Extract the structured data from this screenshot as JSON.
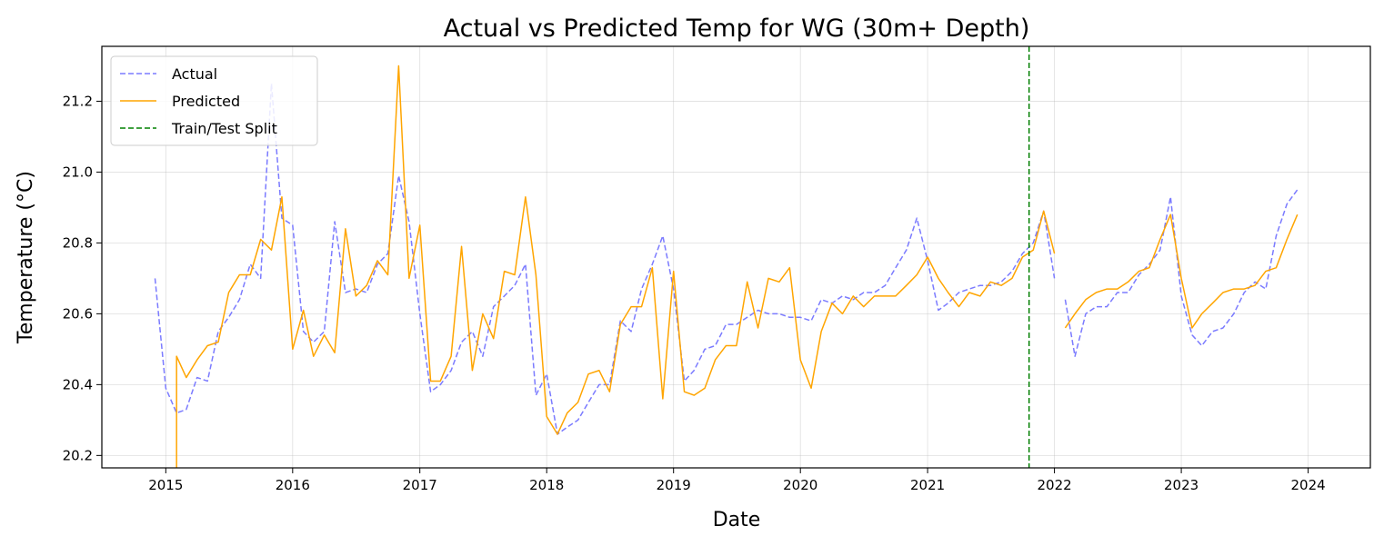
{
  "chart_data": {
    "type": "line",
    "title": "Actual vs Predicted Temp for WG (30m+ Depth)",
    "xlabel": "Date",
    "ylabel": "Temperature (°C)",
    "xlim": [
      "2014-07-01",
      "2024-06-28"
    ],
    "ylim": [
      20.165,
      21.355
    ],
    "x_ticks": [
      "2015",
      "2016",
      "2017",
      "2018",
      "2019",
      "2020",
      "2021",
      "2022",
      "2023",
      "2024"
    ],
    "y_ticks": [
      "20.2",
      "20.4",
      "20.6",
      "20.8",
      "21.0",
      "21.2"
    ],
    "grid": true,
    "legend_position": "upper-left",
    "split_date": "2021-10-20",
    "series": [
      {
        "name": "Actual",
        "color": "#7b7bff",
        "style": "dashed",
        "points": [
          [
            "2014-12-01",
            20.7
          ],
          [
            "2015-01-01",
            20.39
          ],
          [
            "2015-02-01",
            20.32
          ],
          [
            "2015-03-01",
            20.33
          ],
          [
            "2015-04-01",
            20.42
          ],
          [
            "2015-05-01",
            20.41
          ],
          [
            "2015-06-01",
            20.55
          ],
          [
            "2015-07-01",
            20.59
          ],
          [
            "2015-08-01",
            20.64
          ],
          [
            "2015-09-01",
            20.74
          ],
          [
            "2015-10-01",
            20.7
          ],
          [
            "2015-11-01",
            21.25
          ],
          [
            "2015-12-01",
            20.87
          ],
          [
            "2016-01-01",
            20.85
          ],
          [
            "2016-02-01",
            20.55
          ],
          [
            "2016-03-01",
            20.52
          ],
          [
            "2016-04-01",
            20.55
          ],
          [
            "2016-05-01",
            20.86
          ],
          [
            "2016-06-01",
            20.66
          ],
          [
            "2016-07-01",
            20.67
          ],
          [
            "2016-08-01",
            20.66
          ],
          [
            "2016-09-01",
            20.74
          ],
          [
            "2016-10-01",
            20.77
          ],
          [
            "2016-11-01",
            20.99
          ],
          [
            "2016-12-01",
            20.86
          ],
          [
            "2017-01-01",
            20.6
          ],
          [
            "2017-02-01",
            20.38
          ],
          [
            "2017-03-01",
            20.4
          ],
          [
            "2017-04-01",
            20.44
          ],
          [
            "2017-05-01",
            20.52
          ],
          [
            "2017-06-01",
            20.55
          ],
          [
            "2017-07-01",
            20.48
          ],
          [
            "2017-08-01",
            20.62
          ],
          [
            "2017-09-01",
            20.65
          ],
          [
            "2017-10-01",
            20.68
          ],
          [
            "2017-11-01",
            20.74
          ],
          [
            "2017-12-01",
            20.37
          ],
          [
            "2018-01-01",
            20.43
          ],
          [
            "2018-02-01",
            20.26
          ],
          [
            "2018-03-01",
            20.28
          ],
          [
            "2018-04-01",
            20.3
          ],
          [
            "2018-05-01",
            20.35
          ],
          [
            "2018-06-01",
            20.4
          ],
          [
            "2018-07-01",
            20.4
          ],
          [
            "2018-08-01",
            20.58
          ],
          [
            "2018-09-01",
            20.55
          ],
          [
            "2018-10-01",
            20.67
          ],
          [
            "2018-11-01",
            20.74
          ],
          [
            "2018-12-01",
            20.82
          ],
          [
            "2019-01-01",
            20.67
          ],
          [
            "2019-02-01",
            20.41
          ],
          [
            "2019-03-01",
            20.44
          ],
          [
            "2019-04-01",
            20.5
          ],
          [
            "2019-05-01",
            20.51
          ],
          [
            "2019-06-01",
            20.57
          ],
          [
            "2019-07-01",
            20.57
          ],
          [
            "2019-08-01",
            20.59
          ],
          [
            "2019-09-01",
            20.61
          ],
          [
            "2019-10-01",
            20.6
          ],
          [
            "2019-11-01",
            20.6
          ],
          [
            "2019-12-01",
            20.59
          ],
          [
            "2020-01-01",
            20.59
          ],
          [
            "2020-02-01",
            20.58
          ],
          [
            "2020-03-01",
            20.64
          ],
          [
            "2020-04-01",
            20.63
          ],
          [
            "2020-05-01",
            20.65
          ],
          [
            "2020-06-01",
            20.64
          ],
          [
            "2020-07-01",
            20.66
          ],
          [
            "2020-08-01",
            20.66
          ],
          [
            "2020-09-01",
            20.68
          ],
          [
            "2020-10-01",
            20.73
          ],
          [
            "2020-11-01",
            20.78
          ],
          [
            "2020-12-01",
            20.87
          ],
          [
            "2021-01-01",
            20.75
          ],
          [
            "2021-02-01",
            20.61
          ],
          [
            "2021-03-01",
            20.63
          ],
          [
            "2021-04-01",
            20.66
          ],
          [
            "2021-05-01",
            20.67
          ],
          [
            "2021-06-01",
            20.68
          ],
          [
            "2021-07-01",
            20.68
          ],
          [
            "2021-08-01",
            20.69
          ],
          [
            "2021-09-01",
            20.72
          ],
          [
            "2021-10-01",
            20.77
          ],
          [
            "2021-11-01",
            20.8
          ],
          [
            "2021-12-01",
            20.89
          ],
          [
            "2022-01-01",
            20.7
          ],
          null,
          [
            "2022-02-01",
            20.64
          ],
          [
            "2022-03-01",
            20.48
          ],
          [
            "2022-04-01",
            20.6
          ],
          [
            "2022-05-01",
            20.62
          ],
          [
            "2022-06-01",
            20.62
          ],
          [
            "2022-07-01",
            20.66
          ],
          [
            "2022-08-01",
            20.66
          ],
          [
            "2022-09-01",
            20.71
          ],
          [
            "2022-10-01",
            20.74
          ],
          [
            "2022-11-01",
            20.78
          ],
          [
            "2022-12-01",
            20.93
          ],
          [
            "2023-01-01",
            20.65
          ],
          [
            "2023-02-01",
            20.54
          ],
          [
            "2023-03-01",
            20.51
          ],
          [
            "2023-04-01",
            20.55
          ],
          [
            "2023-05-01",
            20.56
          ],
          [
            "2023-06-01",
            20.6
          ],
          [
            "2023-07-01",
            20.66
          ],
          [
            "2023-08-01",
            20.69
          ],
          [
            "2023-09-01",
            20.67
          ],
          [
            "2023-10-01",
            20.82
          ],
          [
            "2023-11-01",
            20.91
          ],
          [
            "2023-12-01",
            20.95
          ]
        ]
      },
      {
        "name": "Predicted",
        "color": "#ffa500",
        "style": "solid",
        "points": [
          [
            "2015-02-01",
            20.15
          ],
          [
            "2015-02-01",
            20.48
          ],
          [
            "2015-03-01",
            20.42
          ],
          [
            "2015-04-01",
            20.47
          ],
          [
            "2015-05-01",
            20.51
          ],
          [
            "2015-06-01",
            20.52
          ],
          [
            "2015-07-01",
            20.66
          ],
          [
            "2015-08-01",
            20.71
          ],
          [
            "2015-09-01",
            20.71
          ],
          [
            "2015-10-01",
            20.81
          ],
          [
            "2015-11-01",
            20.78
          ],
          [
            "2015-12-01",
            20.93
          ],
          [
            "2016-01-01",
            20.5
          ],
          [
            "2016-02-01",
            20.61
          ],
          [
            "2016-03-01",
            20.48
          ],
          [
            "2016-04-01",
            20.54
          ],
          [
            "2016-05-01",
            20.49
          ],
          [
            "2016-06-01",
            20.84
          ],
          [
            "2016-07-01",
            20.65
          ],
          [
            "2016-08-01",
            20.68
          ],
          [
            "2016-09-01",
            20.75
          ],
          [
            "2016-10-01",
            20.71
          ],
          [
            "2016-11-01",
            21.3
          ],
          [
            "2016-12-01",
            20.7
          ],
          [
            "2017-01-01",
            20.85
          ],
          [
            "2017-02-01",
            20.41
          ],
          [
            "2017-03-01",
            20.41
          ],
          [
            "2017-04-01",
            20.48
          ],
          [
            "2017-05-01",
            20.79
          ],
          [
            "2017-06-01",
            20.44
          ],
          [
            "2017-07-01",
            20.6
          ],
          [
            "2017-08-01",
            20.53
          ],
          [
            "2017-09-01",
            20.72
          ],
          [
            "2017-10-01",
            20.71
          ],
          [
            "2017-11-01",
            20.93
          ],
          [
            "2017-12-01",
            20.71
          ],
          [
            "2018-01-01",
            20.31
          ],
          [
            "2018-02-01",
            20.26
          ],
          [
            "2018-03-01",
            20.32
          ],
          [
            "2018-04-01",
            20.35
          ],
          [
            "2018-05-01",
            20.43
          ],
          [
            "2018-06-01",
            20.44
          ],
          [
            "2018-07-01",
            20.38
          ],
          [
            "2018-08-01",
            20.57
          ],
          [
            "2018-09-01",
            20.62
          ],
          [
            "2018-10-01",
            20.62
          ],
          [
            "2018-11-01",
            20.73
          ],
          [
            "2018-12-01",
            20.36
          ],
          [
            "2019-01-01",
            20.72
          ],
          [
            "2019-02-01",
            20.38
          ],
          [
            "2019-03-01",
            20.37
          ],
          [
            "2019-04-01",
            20.39
          ],
          [
            "2019-05-01",
            20.47
          ],
          [
            "2019-06-01",
            20.51
          ],
          [
            "2019-07-01",
            20.51
          ],
          [
            "2019-08-01",
            20.69
          ],
          [
            "2019-09-01",
            20.56
          ],
          [
            "2019-10-01",
            20.7
          ],
          [
            "2019-11-01",
            20.69
          ],
          [
            "2019-12-01",
            20.73
          ],
          [
            "2020-01-01",
            20.47
          ],
          [
            "2020-02-01",
            20.39
          ],
          [
            "2020-03-01",
            20.55
          ],
          [
            "2020-04-01",
            20.63
          ],
          [
            "2020-05-01",
            20.6
          ],
          [
            "2020-06-01",
            20.65
          ],
          [
            "2020-07-01",
            20.62
          ],
          [
            "2020-08-01",
            20.65
          ],
          [
            "2020-09-01",
            20.65
          ],
          [
            "2020-10-01",
            20.65
          ],
          [
            "2020-11-01",
            20.68
          ],
          [
            "2020-12-01",
            20.71
          ],
          [
            "2021-01-01",
            20.76
          ],
          [
            "2021-02-01",
            20.7
          ],
          [
            "2021-03-01",
            20.66
          ],
          [
            "2021-04-01",
            20.62
          ],
          [
            "2021-05-01",
            20.66
          ],
          [
            "2021-06-01",
            20.65
          ],
          [
            "2021-07-01",
            20.69
          ],
          [
            "2021-08-01",
            20.68
          ],
          [
            "2021-09-01",
            20.7
          ],
          [
            "2021-10-01",
            20.76
          ],
          [
            "2021-11-01",
            20.78
          ],
          [
            "2021-12-01",
            20.89
          ],
          [
            "2022-01-01",
            20.77
          ],
          null,
          [
            "2022-02-01",
            20.56
          ],
          [
            "2022-03-01",
            20.6
          ],
          [
            "2022-04-01",
            20.64
          ],
          [
            "2022-05-01",
            20.66
          ],
          [
            "2022-06-01",
            20.67
          ],
          [
            "2022-07-01",
            20.67
          ],
          [
            "2022-08-01",
            20.69
          ],
          [
            "2022-09-01",
            20.72
          ],
          [
            "2022-10-01",
            20.73
          ],
          [
            "2022-11-01",
            20.81
          ],
          [
            "2022-12-01",
            20.88
          ],
          [
            "2023-01-01",
            20.7
          ],
          [
            "2023-02-01",
            20.56
          ],
          [
            "2023-03-01",
            20.6
          ],
          [
            "2023-04-01",
            20.63
          ],
          [
            "2023-05-01",
            20.66
          ],
          [
            "2023-06-01",
            20.67
          ],
          [
            "2023-07-01",
            20.67
          ],
          [
            "2023-08-01",
            20.68
          ],
          [
            "2023-09-01",
            20.72
          ],
          [
            "2023-10-01",
            20.73
          ],
          [
            "2023-11-01",
            20.81
          ],
          [
            "2023-12-01",
            20.88
          ]
        ]
      }
    ],
    "legend": [
      {
        "label": "Actual",
        "color": "#7b7bff",
        "style": "dashed"
      },
      {
        "label": "Predicted",
        "color": "#ffa500",
        "style": "solid"
      },
      {
        "label": "Train/Test Split",
        "color": "#008000",
        "style": "dashed"
      }
    ]
  }
}
